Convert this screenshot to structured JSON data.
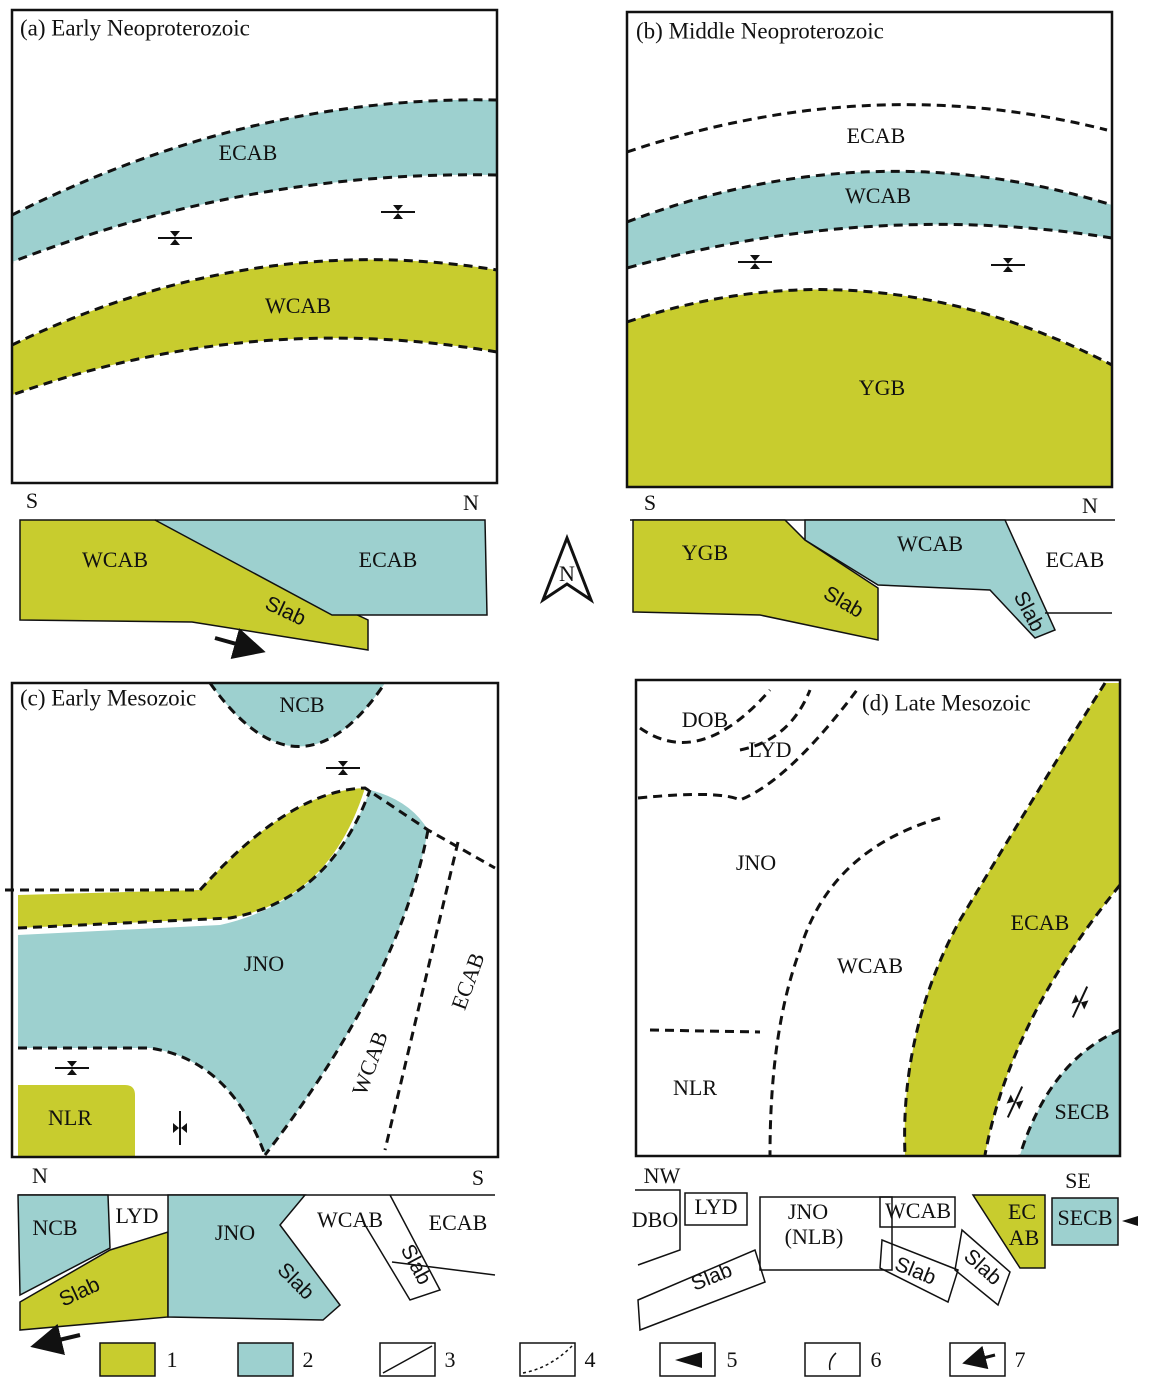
{
  "panels": [
    {
      "title": "(a) Early Neoproterozoic",
      "map_labels": [
        "ECAB",
        "WCAB"
      ],
      "section": {
        "left": "S",
        "right": "N",
        "labels": [
          "WCAB",
          "ECAB",
          "Slab"
        ]
      }
    },
    {
      "title": "(b) Middle Neoproterozoic",
      "map_labels": [
        "ECAB",
        "WCAB",
        "YGB"
      ],
      "section": {
        "left": "S",
        "right": "N",
        "labels": [
          "YGB",
          "WCAB",
          "ECAB",
          "Slab",
          "Slab"
        ]
      }
    },
    {
      "title": "(c) Early Mesozoic",
      "map_labels": [
        "NCB",
        "JNO",
        "ECAB",
        "WCAB",
        "NLR"
      ],
      "section": {
        "left": "N",
        "right": "S",
        "labels": [
          "NCB",
          "LYD",
          "JNO",
          "WCAB",
          "ECAB",
          "Slab",
          "Slab",
          "Slab"
        ]
      }
    },
    {
      "title": "(d) Late Mesozoic",
      "map_labels": [
        "DOB",
        "LYD",
        "JNO",
        "WCAB",
        "ECAB",
        "NLR",
        "SECB"
      ],
      "section": {
        "left": "NW",
        "right": "SE",
        "labels": [
          "DBO",
          "LYD",
          "JNO",
          "(NLB)",
          "WCAB",
          "EC",
          "AB",
          "SECB",
          "Slab",
          "Slab",
          "Slab"
        ]
      }
    }
  ],
  "compass": "N",
  "legend": [
    "1",
    "2",
    "3",
    "4",
    "5",
    "6",
    "7"
  ]
}
